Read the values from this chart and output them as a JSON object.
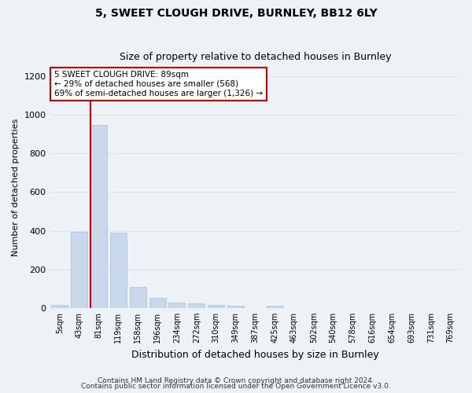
{
  "title": "5, SWEET CLOUGH DRIVE, BURNLEY, BB12 6LY",
  "subtitle": "Size of property relative to detached houses in Burnley",
  "xlabel": "Distribution of detached houses by size in Burnley",
  "ylabel": "Number of detached properties",
  "footnote1": "Contains HM Land Registry data © Crown copyright and database right 2024.",
  "footnote2": "Contains public sector information licensed under the Open Government Licence v3.0.",
  "categories": [
    "5sqm",
    "43sqm",
    "81sqm",
    "119sqm",
    "158sqm",
    "196sqm",
    "234sqm",
    "272sqm",
    "310sqm",
    "349sqm",
    "387sqm",
    "425sqm",
    "463sqm",
    "502sqm",
    "540sqm",
    "578sqm",
    "616sqm",
    "654sqm",
    "693sqm",
    "731sqm",
    "769sqm"
  ],
  "values": [
    14,
    395,
    950,
    390,
    110,
    52,
    27,
    25,
    14,
    12,
    0,
    13,
    0,
    0,
    0,
    0,
    0,
    0,
    0,
    0,
    0
  ],
  "bar_color": "#c8d8ea",
  "bar_edgecolor": "#aabfd4",
  "grid_color": "#d8e4ee",
  "annotation_text": "5 SWEET CLOUGH DRIVE: 89sqm\n← 29% of detached houses are smaller (568)\n69% of semi-detached houses are larger (1,326) →",
  "annotation_box_color": "#ffffff",
  "annotation_box_edgecolor": "#cc0000",
  "vline_color": "#cc0000",
  "vline_x_index": 2,
  "ylim": [
    0,
    1250
  ],
  "yticks": [
    0,
    200,
    400,
    600,
    800,
    1000,
    1200
  ],
  "background_color": "#edf2f7",
  "title_fontsize": 10,
  "subtitle_fontsize": 9,
  "ylabel_fontsize": 8,
  "xlabel_fontsize": 9,
  "tick_fontsize": 7,
  "footnote_fontsize": 6.5
}
